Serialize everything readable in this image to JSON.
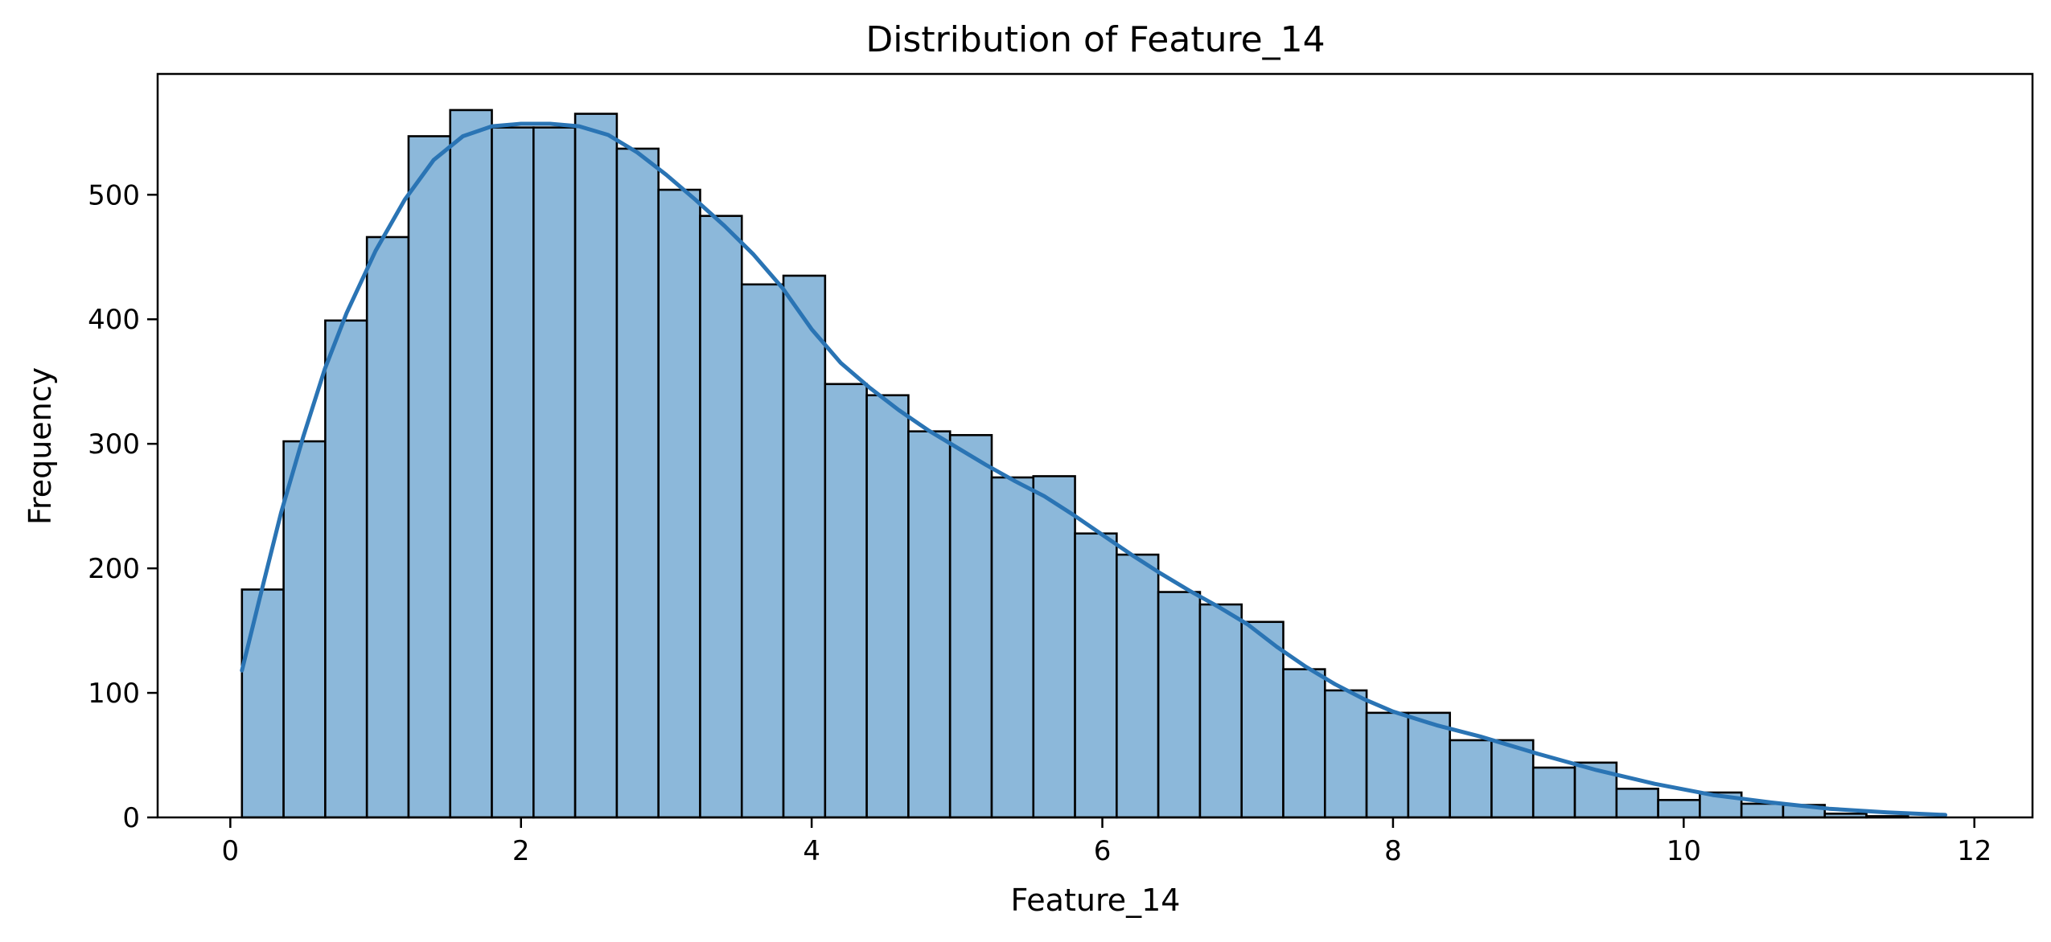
{
  "chart_data": {
    "type": "bar",
    "title": "Distribution of Feature_14",
    "xlabel": "Feature_14",
    "ylabel": "Frequency",
    "xlim": [
      -0.5,
      12.4
    ],
    "ylim": [
      0,
      597
    ],
    "xticks": [
      0,
      2,
      4,
      6,
      8,
      10,
      12
    ],
    "yticks": [
      0,
      100,
      200,
      300,
      400,
      500
    ],
    "grid": false,
    "bin_start": 0.08,
    "bin_width": 0.2866,
    "bar_color": "#8cb8da",
    "edge_color": "#000000",
    "kde_color": "#2a74b4",
    "values": [
      183,
      302,
      399,
      466,
      547,
      568,
      554,
      554,
      565,
      537,
      504,
      483,
      428,
      435,
      348,
      339,
      310,
      307,
      273,
      274,
      228,
      211,
      181,
      171,
      157,
      119,
      102,
      84,
      84,
      62,
      62,
      40,
      44,
      23,
      14,
      20,
      11,
      10,
      3,
      1
    ],
    "kde": {
      "x": [
        0.08,
        0.2,
        0.35,
        0.5,
        0.65,
        0.8,
        1.0,
        1.2,
        1.4,
        1.6,
        1.8,
        2.0,
        2.2,
        2.4,
        2.6,
        2.8,
        3.0,
        3.2,
        3.4,
        3.6,
        3.8,
        4.0,
        4.2,
        4.4,
        4.6,
        4.8,
        5.0,
        5.2,
        5.4,
        5.6,
        5.8,
        6.0,
        6.2,
        6.4,
        6.6,
        6.8,
        7.0,
        7.2,
        7.4,
        7.6,
        7.8,
        8.0,
        8.3,
        8.6,
        9.0,
        9.4,
        9.8,
        10.2,
        10.6,
        11.0,
        11.4,
        11.8
      ],
      "y": [
        118,
        175,
        245,
        305,
        360,
        405,
        455,
        496,
        528,
        547,
        555,
        557,
        557,
        555,
        548,
        534,
        516,
        496,
        475,
        452,
        425,
        392,
        365,
        345,
        327,
        311,
        297,
        283,
        270,
        258,
        243,
        227,
        211,
        196,
        182,
        169,
        155,
        137,
        121,
        107,
        95,
        85,
        74,
        65,
        51,
        38,
        27,
        18,
        12,
        7,
        4,
        2
      ]
    }
  }
}
